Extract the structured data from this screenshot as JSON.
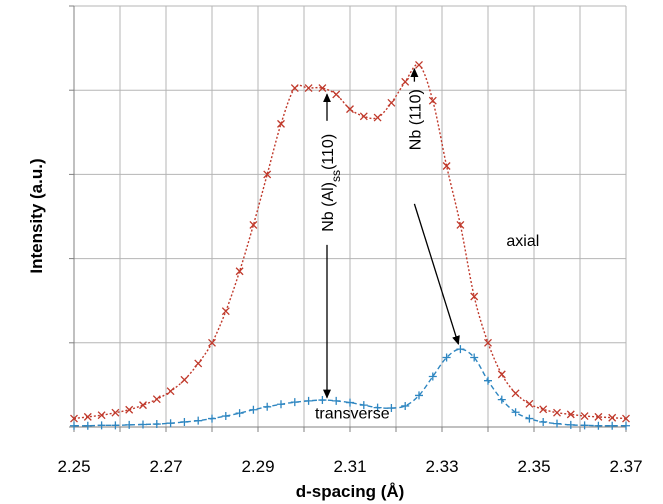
{
  "chart_data": {
    "type": "line",
    "title": "",
    "xlabel": "d-spacing (Å)",
    "ylabel": "Intensity (a.u.)",
    "xlim": [
      2.25,
      2.37
    ],
    "ylim": [
      0,
      100
    ],
    "xticks": [
      "2.25",
      "2.27",
      "2.29",
      "2.31",
      "2.33",
      "2.35",
      "2.37"
    ],
    "grid": true,
    "y_tick_labels_shown": false,
    "series": [
      {
        "name": "axial",
        "color": "#c0392b",
        "marker": "x",
        "line_style": "dotted",
        "x": [
          2.25,
          2.253,
          2.256,
          2.259,
          2.262,
          2.265,
          2.268,
          2.271,
          2.274,
          2.277,
          2.28,
          2.283,
          2.286,
          2.289,
          2.292,
          2.295,
          2.298,
          2.301,
          2.304,
          2.307,
          2.31,
          2.313,
          2.316,
          2.319,
          2.322,
          2.325,
          2.328,
          2.331,
          2.334,
          2.337,
          2.34,
          2.343,
          2.346,
          2.349,
          2.352,
          2.355,
          2.358,
          2.361,
          2.364,
          2.367,
          2.37
        ],
        "y": [
          2,
          2.4,
          2.8,
          3.4,
          4.1,
          5.2,
          6.6,
          8.5,
          11.2,
          15.1,
          20,
          27.5,
          37,
          48,
          60,
          72,
          80.5,
          80.5,
          80.5,
          79,
          75.5,
          73.8,
          73.5,
          77,
          82,
          86,
          77.5,
          62,
          48,
          31,
          20,
          12.5,
          8,
          5.5,
          4.2,
          3.4,
          3,
          2.6,
          2.4,
          2.2,
          2
        ]
      },
      {
        "name": "transverse",
        "color": "#2e86c1",
        "marker": "+",
        "line_style": "dashed",
        "x": [
          2.25,
          2.253,
          2.256,
          2.259,
          2.262,
          2.265,
          2.268,
          2.271,
          2.274,
          2.277,
          2.28,
          2.283,
          2.286,
          2.289,
          2.292,
          2.295,
          2.298,
          2.301,
          2.304,
          2.307,
          2.31,
          2.313,
          2.316,
          2.319,
          2.322,
          2.325,
          2.328,
          2.331,
          2.334,
          2.337,
          2.34,
          2.343,
          2.346,
          2.349,
          2.352,
          2.355,
          2.358,
          2.361,
          2.364,
          2.367,
          2.37
        ],
        "y": [
          0.3,
          0.3,
          0.4,
          0.4,
          0.5,
          0.6,
          0.7,
          0.9,
          1.2,
          1.5,
          2,
          2.6,
          3.3,
          4.1,
          4.8,
          5.4,
          5.9,
          6.2,
          6.4,
          6.2,
          5.8,
          5.2,
          4.6,
          4.5,
          5,
          7.5,
          12,
          16.5,
          18.5,
          16.5,
          11,
          6.5,
          3.5,
          2,
          1.2,
          0.8,
          0.5,
          0.4,
          0.3,
          0.3,
          0.3
        ]
      }
    ],
    "annotations": [
      {
        "id": "nbal",
        "text_main": "Nb (Al)",
        "text_sub": "ss",
        "text_tail": "(110)",
        "x": 2.305,
        "text_y": 58,
        "arrow_up_to": 80,
        "arrow_down_to": 6.5
      },
      {
        "id": "nb110",
        "text": "Nb (110)",
        "x": 2.324,
        "text_y": 73,
        "arrow_up_to": 86,
        "arrow_down_from": 53,
        "arrow_target_x": 2.334,
        "arrow_target_y": 19
      },
      {
        "id": "axial",
        "text": "axial",
        "x": 2.344,
        "y": 43
      },
      {
        "id": "transverse",
        "text": "transverse",
        "x": 2.3105,
        "y": 2
      }
    ]
  }
}
